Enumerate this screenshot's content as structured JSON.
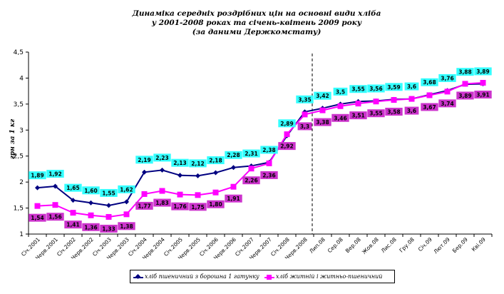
{
  "chart_data": {
    "type": "line",
    "title": [
      "Динаміка середніх роздрібних цін на основні види хліба",
      "у 2001-2008 роках та січень-квітень 2009 року",
      "(за даними Держкомстату)"
    ],
    "ylabel": "грн за 1 кг",
    "xlabel": "",
    "ylim": [
      1,
      4.5
    ],
    "yticks": [
      "1",
      "1,5",
      "2",
      "2,5",
      "3",
      "3,5",
      "4",
      "4,5"
    ],
    "grid": false,
    "legend_position": "bottom",
    "categories": [
      "Січ.2001",
      "Черв.2001",
      "Січ.2002",
      "Черв.2002",
      "Січ.2003",
      "Черв.2003",
      "Січ.2004",
      "Черв.2004",
      "Січ.2005",
      "Черв.2005",
      "Січ.2006",
      "Черв.2006",
      "Січ.2007",
      "Черв.2007",
      "Січ.2008",
      "Черв.2008",
      "Лип.08",
      "Сер.08",
      "Вер.08",
      "Жов.08",
      "Лис.08",
      "Гру.08",
      "Січ.09",
      "Лют.09",
      "Бер.09",
      "Кві.09"
    ],
    "vline_after_category": "Черв.2008",
    "series": [
      {
        "name": "хліб пшеничний з борошна 1 гатунку",
        "color": "#000080",
        "marker": "diamond",
        "label_bg": "#33ffff",
        "values": [
          1.89,
          1.92,
          1.65,
          1.6,
          1.55,
          1.62,
          2.19,
          2.23,
          2.13,
          2.12,
          2.18,
          2.28,
          2.31,
          2.38,
          2.89,
          3.35,
          3.42,
          3.5,
          3.55,
          3.56,
          3.59,
          3.6,
          3.68,
          3.76,
          3.88,
          3.89
        ],
        "value_labels": [
          "1,89",
          "1,92",
          "1,65",
          "1,60",
          "1,55",
          "1,62",
          "2,19",
          "2,23",
          "2,13",
          "2,12",
          "2,18",
          "2,28",
          "2,31",
          "2,38",
          "2,89",
          "3,35",
          "3,42",
          "3,5",
          "3,55",
          "3,56",
          "3,59",
          "3,6",
          "3,68",
          "3,76",
          "3,88",
          "3,89"
        ]
      },
      {
        "name": "хліб житній і житньо-пшеничний",
        "color": "#ff00ff",
        "marker": "square",
        "label_bg": "#cc33cc",
        "values": [
          1.54,
          1.56,
          1.41,
          1.36,
          1.33,
          1.38,
          1.77,
          1.83,
          1.76,
          1.75,
          1.8,
          1.91,
          2.26,
          2.36,
          2.92,
          3.3,
          3.38,
          3.46,
          3.51,
          3.55,
          3.58,
          3.6,
          3.67,
          3.74,
          3.89,
          3.91
        ],
        "value_labels": [
          "1,54",
          "1,56",
          "1,41",
          "1,36",
          "1,33",
          "1,38",
          "1,77",
          "1,83",
          "1,76",
          "1,75",
          "1,80",
          "1,91",
          "2,26",
          "2,36",
          "2,92",
          "3,3",
          "3,38",
          "3,46",
          "3,51",
          "3,55",
          "3,58",
          "3,6",
          "3,67",
          "3,74",
          "3,89",
          "3,91"
        ]
      }
    ]
  }
}
